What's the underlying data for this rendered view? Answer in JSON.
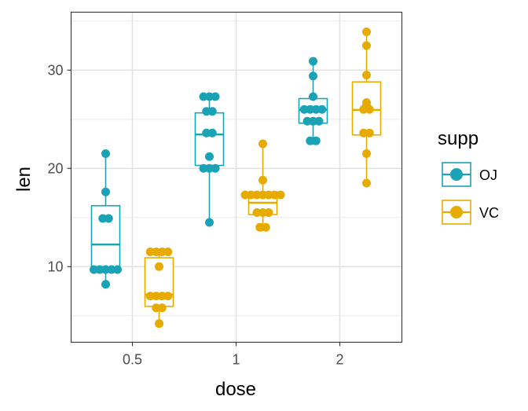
{
  "chart_data": {
    "type": "box",
    "title": "",
    "xlabel": "dose",
    "ylabel": "len",
    "categories": [
      "0.5",
      "1",
      "2"
    ],
    "ylim": [
      2.3,
      35.9
    ],
    "yticks": [
      10,
      20,
      30
    ],
    "grid": true,
    "legend": {
      "title": "supp",
      "position": "right",
      "entries": [
        "OJ",
        "VC"
      ]
    },
    "series": [
      {
        "name": "OJ",
        "color": "#1aa3b5",
        "boxes": [
          {
            "category": "0.5",
            "min": 8.2,
            "q1": 9.7,
            "median": 12.25,
            "q3": 16.2,
            "max": 21.5
          },
          {
            "category": "1",
            "min": 14.5,
            "q1": 20.3,
            "median": 23.45,
            "q3": 25.65,
            "max": 27.3
          },
          {
            "category": "2",
            "min": 22.4,
            "q1": 24.6,
            "median": 25.95,
            "q3": 27.1,
            "max": 30.9
          }
        ],
        "points": [
          {
            "category": "0.5",
            "values": [
              21.5,
              17.6,
              14.9,
              14.9,
              9.7,
              9.7,
              9.7,
              9.7,
              9.7,
              8.2
            ]
          },
          {
            "category": "1",
            "values": [
              27.3,
              27.3,
              27.3,
              25.8,
              25.8,
              21.2,
              23.6,
              23.6,
              20.0,
              20.0,
              20.0,
              14.5
            ]
          },
          {
            "category": "2",
            "values": [
              30.9,
              29.4,
              27.3,
              26.0,
              26.0,
              26.0,
              26.0,
              24.8,
              24.8,
              24.8,
              22.8,
              22.8
            ]
          }
        ]
      },
      {
        "name": "VC",
        "color": "#e7ab00",
        "boxes": [
          {
            "category": "0.5",
            "min": 4.2,
            "q1": 5.95,
            "median": 7.15,
            "q3": 10.9,
            "max": 11.5
          },
          {
            "category": "1",
            "min": 13.6,
            "q1": 15.3,
            "median": 16.5,
            "q3": 17.3,
            "max": 22.5
          },
          {
            "category": "2",
            "min": 18.5,
            "q1": 23.4,
            "median": 25.95,
            "q3": 28.8,
            "max": 33.9
          }
        ],
        "points": [
          {
            "category": "0.5",
            "values": [
              11.5,
              11.5,
              11.5,
              11.5,
              10.0,
              7.0,
              7.0,
              7.0,
              7.0,
              5.8,
              5.8,
              4.2
            ]
          },
          {
            "category": "1",
            "values": [
              22.5,
              18.8,
              17.3,
              17.3,
              17.3,
              17.3,
              17.3,
              17.3,
              17.3,
              15.5,
              15.5,
              15.5,
              14.0,
              14.0
            ]
          },
          {
            "category": "2",
            "values": [
              33.9,
              32.5,
              29.5,
              26.7,
              26.4,
              26.0,
              26.0,
              23.6,
              23.6,
              21.5,
              18.5
            ]
          }
        ]
      }
    ]
  }
}
